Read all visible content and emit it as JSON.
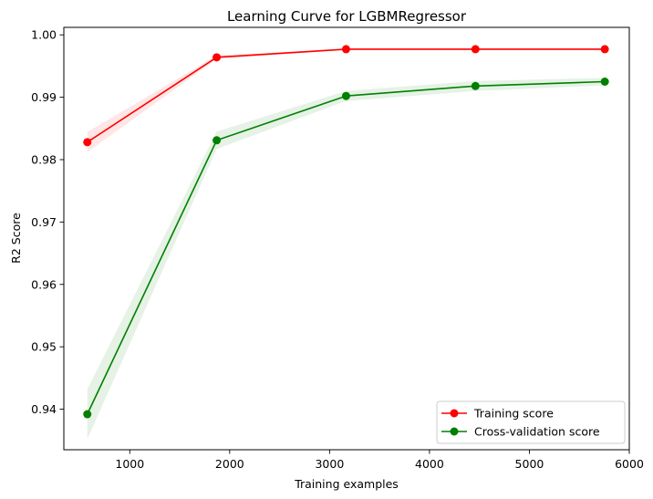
{
  "chart_data": {
    "type": "line",
    "title": "Learning Curve for LGBMRegressor",
    "xlabel": "Training examples",
    "ylabel": "R2 Score",
    "xlim": [
      340,
      6000
    ],
    "ylim": [
      0.9335,
      1.0012
    ],
    "xticks": [
      1000,
      2000,
      3000,
      4000,
      5000,
      6000
    ],
    "yticks": [
      0.94,
      0.95,
      0.96,
      0.97,
      0.98,
      0.99,
      1.0
    ],
    "ytick_labels": [
      "0.94",
      "0.95",
      "0.96",
      "0.97",
      "0.98",
      "0.99",
      "1.00"
    ],
    "grid": false,
    "legend_position": "bottom-right",
    "x": [
      575,
      1870,
      3165,
      4460,
      5755
    ],
    "series": [
      {
        "name": "Training score",
        "color": "#ff0000",
        "band_color": "#ff0000",
        "values": [
          0.9828,
          0.9964,
          0.9977,
          0.9977,
          0.9977
        ],
        "band_lower": [
          0.9812,
          0.9961,
          0.9976,
          0.9976,
          0.9976
        ],
        "band_upper": [
          0.9844,
          0.9967,
          0.9978,
          0.9978,
          0.9978
        ]
      },
      {
        "name": "Cross-validation score",
        "color": "#008000",
        "band_color": "#008000",
        "values": [
          0.9392,
          0.9831,
          0.9902,
          0.9918,
          0.9925
        ],
        "band_lower": [
          0.9352,
          0.9817,
          0.9894,
          0.991,
          0.9919
        ],
        "band_upper": [
          0.9432,
          0.9845,
          0.991,
          0.9926,
          0.9931
        ]
      }
    ]
  }
}
